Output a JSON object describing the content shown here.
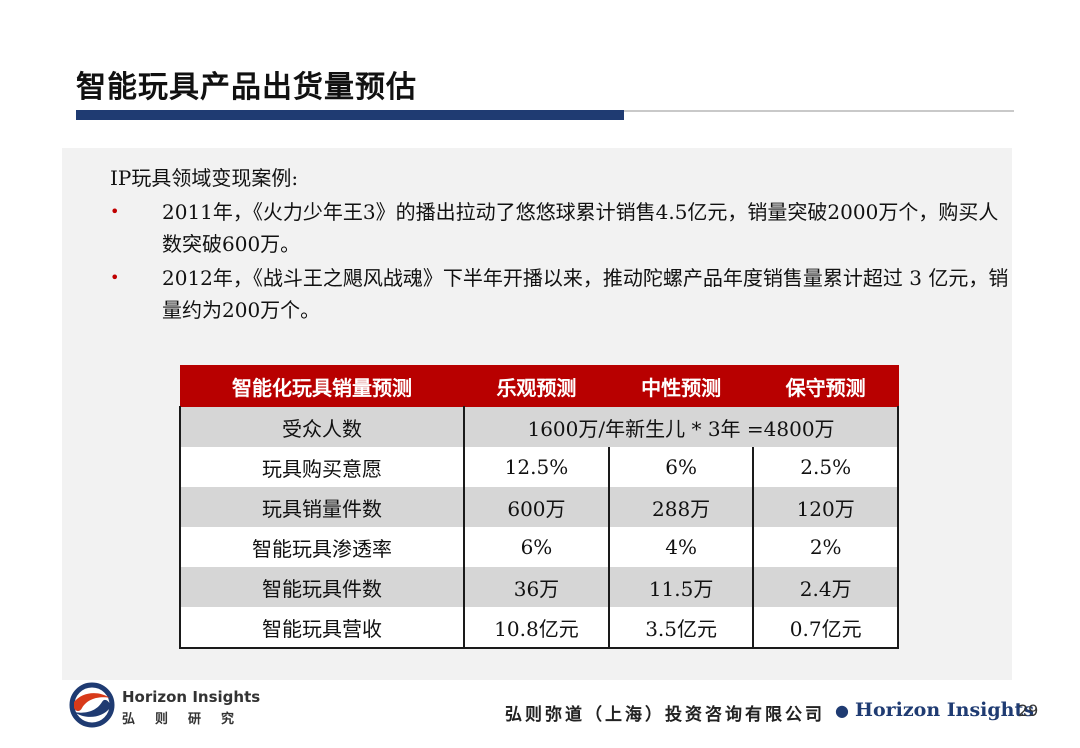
{
  "title": "智能玩具产品出货量预估",
  "intro": "IP玩具领域变现案例:",
  "bullets": [
    "2011年，《火力少年王3》的播出拉动了悠悠球累计销售4.5亿元，销量突破2000万个，购买人数突破600万。",
    "2012年，《战斗王之飓风战魂》下半年开播以来，推动陀螺产品年度销售量累计超过 3 亿元，销量约为200万个。"
  ],
  "table": {
    "headers": [
      "智能化玩具销量预测",
      "乐观预测",
      "中性预测",
      "保守预测"
    ],
    "audience_row": {
      "label": "受众人数",
      "value": "1600万/年新生儿 * 3年 =4800万"
    },
    "rows": [
      {
        "label": "玩具购买意愿",
        "values": [
          "12.5%",
          "6%",
          "2.5%"
        ]
      },
      {
        "label": "玩具销量件数",
        "values": [
          "600万",
          "288万",
          "120万"
        ]
      },
      {
        "label": "智能玩具渗透率",
        "values": [
          "6%",
          "4%",
          "2%"
        ]
      },
      {
        "label": "智能玩具件数",
        "values": [
          "36万",
          "11.5万",
          "2.4万"
        ]
      },
      {
        "label": "智能玩具营收",
        "values": [
          "10.8亿元",
          "3.5亿元",
          "0.7亿元"
        ]
      }
    ]
  },
  "footer": {
    "brand_en": "Horizon Insights",
    "brand_cn": "弘则研究",
    "company": "弘则弥道（上海）投资咨询有限公司",
    "company_en": "Horizon Insights",
    "page": "29"
  },
  "colors": {
    "accent_red": "#b80000",
    "navy": "#1f3b72"
  },
  "icons": {
    "logo": "horizon-insights-logo-icon",
    "bullet": "bullet-dot-icon"
  }
}
